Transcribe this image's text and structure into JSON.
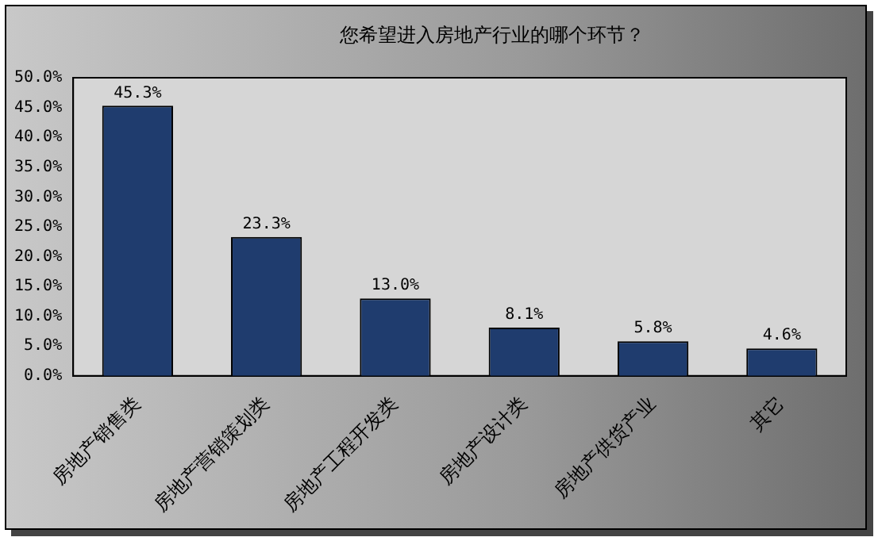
{
  "chart_data": {
    "type": "bar",
    "title": "您希望进入房地产行业的哪个环节？",
    "categories": [
      "房地产销售类",
      "房地产营销策划类",
      "房地产工程开发类",
      "房地产设计类",
      "房地产供货产业",
      "其它"
    ],
    "values": [
      45.3,
      23.3,
      13.0,
      8.1,
      5.8,
      4.6
    ],
    "value_labels": [
      "45.3%",
      "23.3%",
      "13.0%",
      "8.1%",
      "5.8%",
      "4.6%"
    ],
    "color": "#1f3c6e",
    "ylim": [
      0,
      50
    ],
    "yticks": [
      {
        "value": 0,
        "label": "0.0%"
      },
      {
        "value": 5,
        "label": "5.0%"
      },
      {
        "value": 10,
        "label": "10.0%"
      },
      {
        "value": 15,
        "label": "15.0%"
      },
      {
        "value": 20,
        "label": "20.0%"
      },
      {
        "value": 25,
        "label": "25.0%"
      },
      {
        "value": 30,
        "label": "30.0%"
      },
      {
        "value": 35,
        "label": "35.0%"
      },
      {
        "value": 40,
        "label": "40.0%"
      },
      {
        "value": 45,
        "label": "45.0%"
      },
      {
        "value": 50,
        "label": "50.0%"
      }
    ],
    "grid": false
  }
}
